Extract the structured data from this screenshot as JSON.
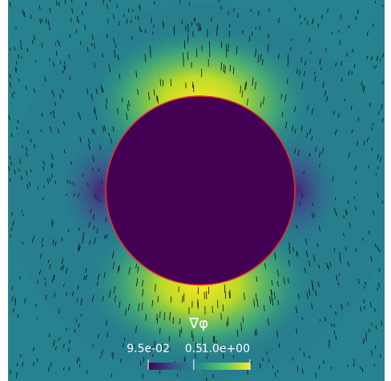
{
  "colorbar": {
    "title": "∇φ",
    "range": [
      0.095,
      1.0
    ],
    "ticks": [
      {
        "value": 0.095,
        "label": "9.5e-02"
      },
      0.5,
      {
        "value": 1.0,
        "label": "1.0e+00"
      }
    ]
  }
}
